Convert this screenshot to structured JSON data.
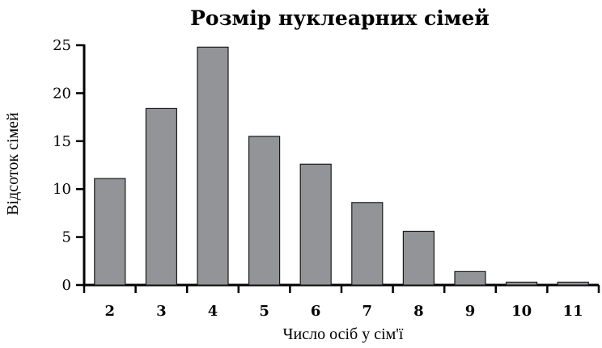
{
  "chart_data": {
    "type": "bar",
    "title": "Розмір нуклеарних сімей",
    "xlabel": "Число осіб у сім'ї",
    "ylabel": "Відсоток сімей",
    "categories": [
      "2",
      "3",
      "4",
      "5",
      "6",
      "7",
      "8",
      "9",
      "10",
      "11"
    ],
    "values": [
      11.1,
      18.4,
      24.8,
      15.5,
      12.6,
      8.6,
      5.6,
      1.4,
      0.3,
      0.3
    ],
    "ylim": [
      0,
      25
    ],
    "yticks": [
      0,
      5,
      10,
      15,
      20,
      25
    ],
    "grid": false,
    "legend": "none",
    "colors": {
      "bar_fill": "#939497",
      "bar_stroke": "#1a1a1a",
      "axis": "#000000",
      "text": "#000000"
    }
  }
}
